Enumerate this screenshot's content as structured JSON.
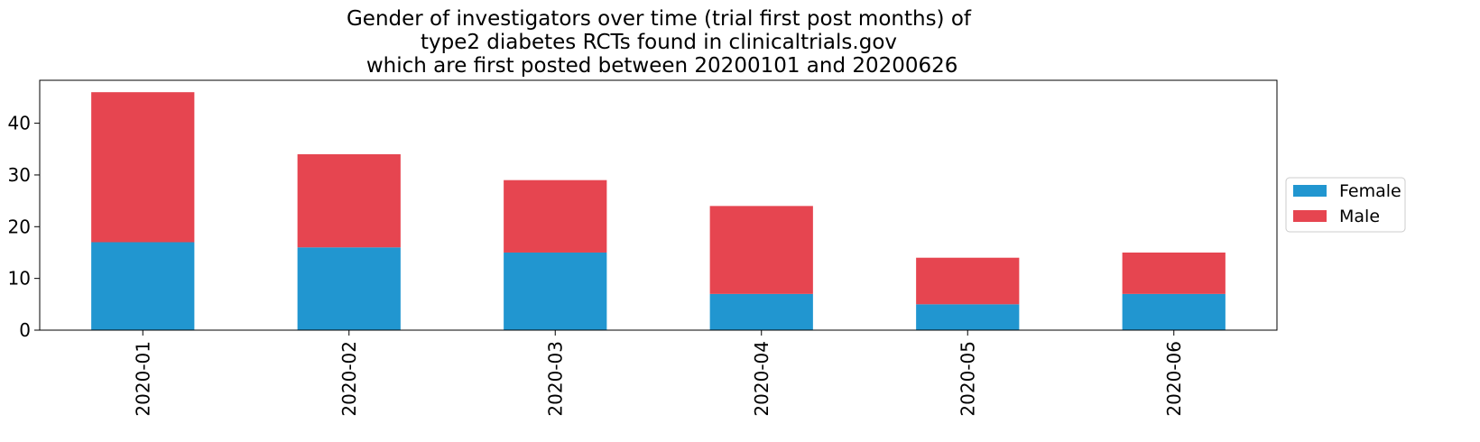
{
  "chart_data": {
    "type": "bar",
    "stacked": true,
    "title_lines": [
      "Gender of investigators over time (trial first post months) of",
      "type2 diabetes RCTs found in clinicaltrials.gov",
      " which are first posted between 20200101 and 20200626"
    ],
    "xlabel": "",
    "ylabel": "",
    "categories": [
      "2020-01",
      "2020-02",
      "2020-03",
      "2020-04",
      "2020-05",
      "2020-06"
    ],
    "series": [
      {
        "name": "Female",
        "color": "#2196d0",
        "values": [
          17,
          16,
          15,
          7,
          5,
          7
        ]
      },
      {
        "name": "Male",
        "color": "#e64550",
        "values": [
          29,
          18,
          14,
          17,
          9,
          8
        ]
      }
    ],
    "ylim": [
      0,
      48.3
    ],
    "yticks": [
      0,
      10,
      20,
      30,
      40
    ],
    "grid": false,
    "legend": "right-center"
  }
}
